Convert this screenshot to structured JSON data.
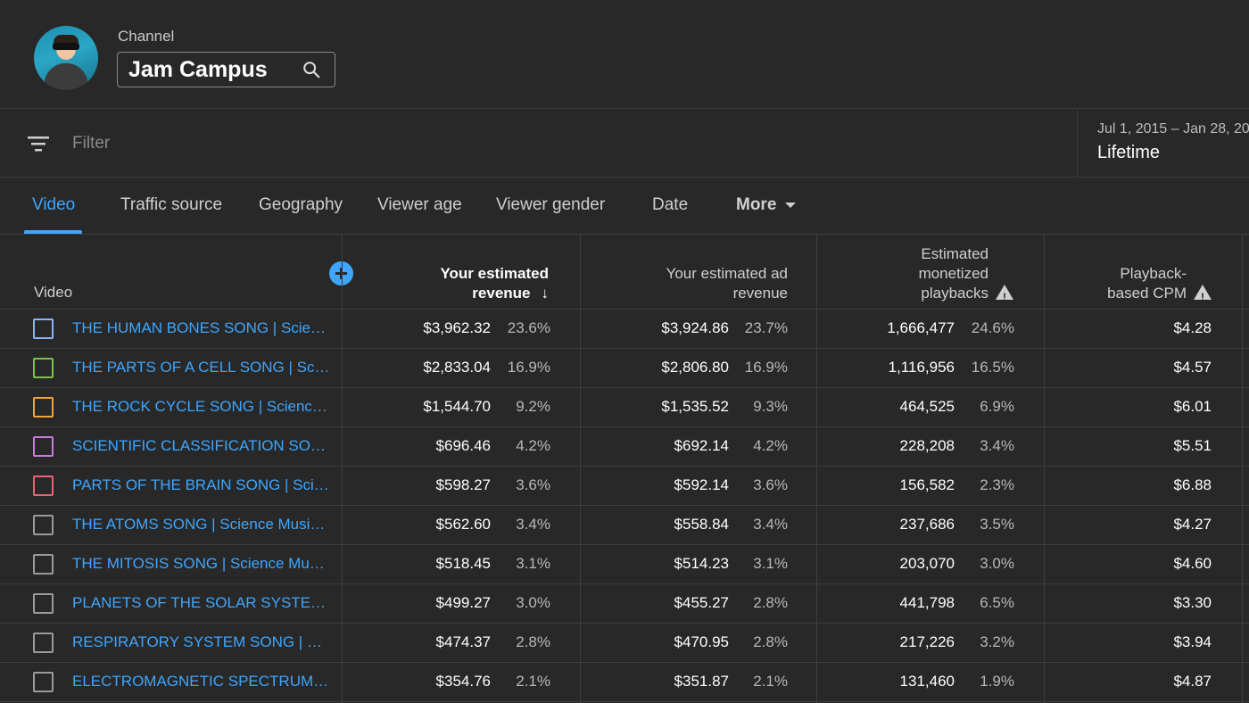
{
  "channel": {
    "label": "Channel",
    "name": "Jam Campus"
  },
  "filter": {
    "placeholder": "Filter",
    "date_range": "Jul 1, 2015 – Jan 28, 20",
    "period": "Lifetime"
  },
  "tabs": [
    {
      "label": "Video",
      "active": true
    },
    {
      "label": "Traffic source",
      "active": false
    },
    {
      "label": "Geography",
      "active": false
    },
    {
      "label": "Viewer age",
      "active": false
    },
    {
      "label": "Viewer gender",
      "active": false
    },
    {
      "label": "Date",
      "active": false
    },
    {
      "label": "More",
      "active": false
    }
  ],
  "table": {
    "headers": {
      "video": "Video",
      "revenue_line1": "Your estimated",
      "revenue_line2": "revenue",
      "ad_revenue_line1": "Your estimated ad",
      "ad_revenue_line2": "revenue",
      "playbacks_line1": "Estimated",
      "playbacks_line2": "monetized",
      "playbacks_line3": "playbacks",
      "cpm_line1": "Playback-",
      "cpm_line2": "based CPM"
    },
    "rows": [
      {
        "title": "THE HUMAN BONES SONG | Science Music Video",
        "color": "#8ab4f8",
        "revenue": "$3,962.32",
        "revenue_pct": "23.6%",
        "ad_revenue": "$3,924.86",
        "ad_revenue_pct": "23.7%",
        "playbacks": "1,666,477",
        "playbacks_pct": "24.6%",
        "cpm": "$4.28"
      },
      {
        "title": "THE PARTS OF A CELL SONG | Science Music Video",
        "color": "#7cc34a",
        "revenue": "$2,833.04",
        "revenue_pct": "16.9%",
        "ad_revenue": "$2,806.80",
        "ad_revenue_pct": "16.9%",
        "playbacks": "1,116,956",
        "playbacks_pct": "16.5%",
        "cpm": "$4.57"
      },
      {
        "title": "THE ROCK CYCLE SONG | Science Music Video",
        "color": "#f2a33a",
        "revenue": "$1,544.70",
        "revenue_pct": "9.2%",
        "ad_revenue": "$1,535.52",
        "ad_revenue_pct": "9.3%",
        "playbacks": "464,525",
        "playbacks_pct": "6.9%",
        "cpm": "$6.01"
      },
      {
        "title": "SCIENTIFIC CLASSIFICATION SONG | Science Music Video",
        "color": "#c77ddc",
        "revenue": "$696.46",
        "revenue_pct": "4.2%",
        "ad_revenue": "$692.14",
        "ad_revenue_pct": "4.2%",
        "playbacks": "228,208",
        "playbacks_pct": "3.4%",
        "cpm": "$5.51"
      },
      {
        "title": "PARTS OF THE BRAIN SONG | Science Music Video",
        "color": "#ef5f76",
        "revenue": "$598.27",
        "revenue_pct": "3.6%",
        "ad_revenue": "$592.14",
        "ad_revenue_pct": "3.6%",
        "playbacks": "156,582",
        "playbacks_pct": "2.3%",
        "cpm": "$6.88"
      },
      {
        "title": "THE ATOMS SONG | Science Music Video",
        "color": "#9a9a9a",
        "revenue": "$562.60",
        "revenue_pct": "3.4%",
        "ad_revenue": "$558.84",
        "ad_revenue_pct": "3.4%",
        "playbacks": "237,686",
        "playbacks_pct": "3.5%",
        "cpm": "$4.27"
      },
      {
        "title": "THE MITOSIS SONG | Science Music Video",
        "color": "#9a9a9a",
        "revenue": "$518.45",
        "revenue_pct": "3.1%",
        "ad_revenue": "$514.23",
        "ad_revenue_pct": "3.1%",
        "playbacks": "203,070",
        "playbacks_pct": "3.0%",
        "cpm": "$4.60"
      },
      {
        "title": "PLANETS OF THE SOLAR SYSTEM SONG | Science Music Video",
        "color": "#9a9a9a",
        "revenue": "$499.27",
        "revenue_pct": "3.0%",
        "ad_revenue": "$455.27",
        "ad_revenue_pct": "2.8%",
        "playbacks": "441,798",
        "playbacks_pct": "6.5%",
        "cpm": "$3.30"
      },
      {
        "title": "RESPIRATORY SYSTEM SONG | Science Music Video",
        "color": "#9a9a9a",
        "revenue": "$474.37",
        "revenue_pct": "2.8%",
        "ad_revenue": "$470.95",
        "ad_revenue_pct": "2.8%",
        "playbacks": "217,226",
        "playbacks_pct": "3.2%",
        "cpm": "$3.94"
      },
      {
        "title": "ELECTROMAGNETIC SPECTRUM SONG | Science Music Video",
        "color": "#9a9a9a",
        "revenue": "$354.76",
        "revenue_pct": "2.1%",
        "ad_revenue": "$351.87",
        "ad_revenue_pct": "2.1%",
        "playbacks": "131,460",
        "playbacks_pct": "1.9%",
        "cpm": "$4.87"
      }
    ]
  }
}
